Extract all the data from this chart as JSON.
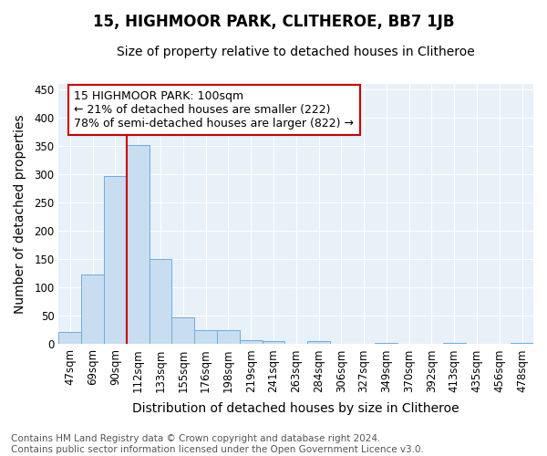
{
  "title": "15, HIGHMOOR PARK, CLITHEROE, BB7 1JB",
  "subtitle": "Size of property relative to detached houses in Clitheroe",
  "xlabel": "Distribution of detached houses by size in Clitheroe",
  "ylabel": "Number of detached properties",
  "bar_labels": [
    "47sqm",
    "69sqm",
    "90sqm",
    "112sqm",
    "133sqm",
    "155sqm",
    "176sqm",
    "198sqm",
    "219sqm",
    "241sqm",
    "263sqm",
    "284sqm",
    "306sqm",
    "327sqm",
    "349sqm",
    "370sqm",
    "392sqm",
    "413sqm",
    "435sqm",
    "456sqm",
    "478sqm"
  ],
  "bar_values": [
    22,
    123,
    297,
    352,
    150,
    48,
    24,
    24,
    7,
    5,
    1,
    5,
    0,
    0,
    2,
    0,
    0,
    3,
    0,
    0,
    3
  ],
  "bar_color": "#c9ddf0",
  "bar_edge_color": "#6aaee0",
  "ylim": [
    0,
    460
  ],
  "yticks": [
    0,
    50,
    100,
    150,
    200,
    250,
    300,
    350,
    400,
    450
  ],
  "red_line_x": 2.5,
  "annotation_box_text": "15 HIGHMOOR PARK: 100sqm\n← 21% of detached houses are smaller (222)\n78% of semi-detached houses are larger (822) →",
  "annotation_box_color": "#ffffff",
  "annotation_box_edge_color": "#cc0000",
  "red_line_color": "#cc0000",
  "footnote": "Contains HM Land Registry data © Crown copyright and database right 2024.\nContains public sector information licensed under the Open Government Licence v3.0.",
  "fig_background_color": "#ffffff",
  "plot_background_color": "#e8f0f8",
  "grid_color": "#ffffff",
  "title_fontsize": 12,
  "subtitle_fontsize": 10,
  "axis_label_fontsize": 10,
  "tick_fontsize": 8.5,
  "annotation_fontsize": 9,
  "footnote_fontsize": 7.5
}
